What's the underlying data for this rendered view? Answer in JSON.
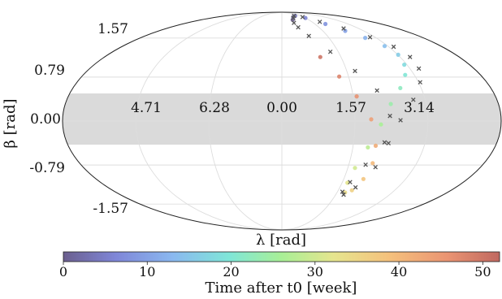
{
  "chart_data": {
    "type": "scatter",
    "projection": "mollweide",
    "title": "",
    "xlabel": "λ [rad]",
    "ylabel": "β [rad]",
    "lon_tick_labels": [
      "4.71",
      "6.28",
      "0.00",
      "1.57",
      "3.14"
    ],
    "lat_tick_labels": [
      "1.57",
      "0.79",
      "0.00",
      "-0.79",
      "-1.57"
    ],
    "shaded_band": {
      "lat_range": [
        -0.35,
        0.35
      ],
      "color": "#d9d9d9"
    },
    "grid": true,
    "series": [
      {
        "marker": "circle",
        "color_by": "time",
        "points": [
          {
            "lon": 0.42,
            "lat": 1.36,
            "t": 0
          },
          {
            "lon": 0.55,
            "lat": 1.42,
            "t": 2
          },
          {
            "lon": 0.74,
            "lat": 1.45,
            "t": 4
          },
          {
            "lon": 1.05,
            "lat": 1.4,
            "t": 6
          },
          {
            "lon": 1.38,
            "lat": 1.28,
            "t": 8
          },
          {
            "lon": 1.62,
            "lat": 1.16,
            "t": 10
          },
          {
            "lon": 1.85,
            "lat": 1.05,
            "t": 12
          },
          {
            "lon": 2.03,
            "lat": 0.93,
            "t": 14
          },
          {
            "lon": 2.1,
            "lat": 0.81,
            "t": 16
          },
          {
            "lon": 2.05,
            "lat": 0.68,
            "t": 18
          },
          {
            "lon": 1.95,
            "lat": 0.55,
            "t": 20
          },
          {
            "lon": 1.78,
            "lat": 0.39,
            "t": 22
          },
          {
            "lon": 1.58,
            "lat": 0.2,
            "t": 24
          },
          {
            "lon": 1.42,
            "lat": -0.04,
            "t": 26
          },
          {
            "lon": 1.27,
            "lat": -0.31,
            "t": 28
          },
          {
            "lon": 1.16,
            "lat": -0.56,
            "t": 30
          },
          {
            "lon": 1.14,
            "lat": -0.75,
            "t": 32
          },
          {
            "lon": 1.2,
            "lat": -0.88,
            "t": 34
          },
          {
            "lon": 1.3,
            "lat": -0.85,
            "t": 36
          },
          {
            "lon": 1.38,
            "lat": -0.7,
            "t": 38
          },
          {
            "lon": 1.41,
            "lat": -0.5,
            "t": 40
          },
          {
            "lon": 1.38,
            "lat": -0.29,
            "t": 42
          },
          {
            "lon": 1.28,
            "lat": 0.02,
            "t": 44
          },
          {
            "lon": 1.1,
            "lat": 0.29,
            "t": 46
          },
          {
            "lon": 0.9,
            "lat": 0.53,
            "t": 48
          },
          {
            "lon": 0.68,
            "lat": 0.78,
            "t": 50
          }
        ]
      },
      {
        "marker": "x",
        "color": "#555555",
        "points": [
          {
            "lon": 0.4,
            "lat": 1.3
          },
          {
            "lon": 0.51,
            "lat": 1.4
          },
          {
            "lon": 0.68,
            "lat": 1.45
          },
          {
            "lon": 1.0,
            "lat": 1.42
          },
          {
            "lon": 1.32,
            "lat": 1.32
          },
          {
            "lon": 1.68,
            "lat": 1.2
          },
          {
            "lon": 1.98,
            "lat": 1.06
          },
          {
            "lon": 2.19,
            "lat": 0.92
          },
          {
            "lon": 2.27,
            "lat": 0.78
          },
          {
            "lon": 2.24,
            "lat": 0.63
          },
          {
            "lon": 2.12,
            "lat": 0.46
          },
          {
            "lon": 1.92,
            "lat": 0.25
          },
          {
            "lon": 1.7,
            "lat": 0.01
          },
          {
            "lon": 1.5,
            "lat": -0.25
          },
          {
            "lon": 1.31,
            "lat": -0.52
          },
          {
            "lon": 1.18,
            "lat": -0.74
          },
          {
            "lon": 1.14,
            "lat": -0.87
          },
          {
            "lon": 1.2,
            "lat": -0.91
          },
          {
            "lon": 1.33,
            "lat": -0.81
          },
          {
            "lon": 1.48,
            "lat": -0.55
          },
          {
            "lon": 1.56,
            "lat": -0.26
          },
          {
            "lon": 1.55,
            "lat": 0.06
          },
          {
            "lon": 1.42,
            "lat": 0.36
          },
          {
            "lon": 1.18,
            "lat": 0.6
          },
          {
            "lon": 0.9,
            "lat": 0.85
          },
          {
            "lon": 0.62,
            "lat": 1.08
          },
          {
            "lon": 0.46,
            "lat": 1.22
          }
        ]
      }
    ],
    "colorbar": {
      "label": "Time after t0 [week]",
      "ticks": [
        "0",
        "10",
        "20",
        "30",
        "40",
        "50"
      ],
      "range": [
        0,
        52
      ],
      "colormap": "turbo",
      "orientation": "horizontal",
      "position": "bottom"
    }
  }
}
